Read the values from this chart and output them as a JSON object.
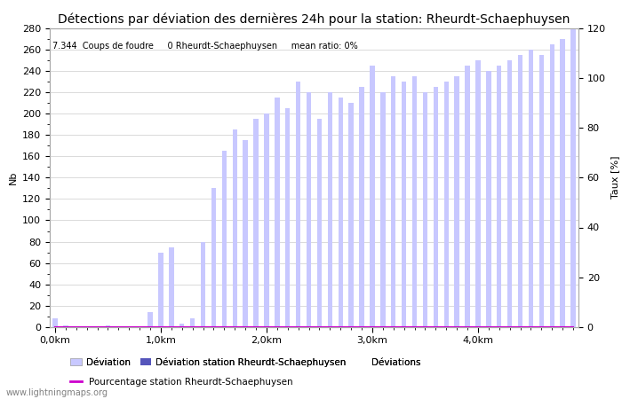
{
  "title": "Détections par déviation des dernières 24h pour la station: Rheurdt-Schaephuysen",
  "subtitle": "7.344  Coups de foudre     0 Rheurdt-Schaephuysen     mean ratio: 0%",
  "xlabel": "Déviations",
  "ylabel_left": "Nb",
  "ylabel_right": "Taux [%]",
  "ylim_left": [
    0,
    280
  ],
  "ylim_right": [
    0,
    120
  ],
  "xtick_labels": [
    "0,0km",
    "1,0km",
    "2,0km",
    "3,0km",
    "4,0km"
  ],
  "xtick_positions": [
    0,
    10,
    20,
    30,
    40
  ],
  "yticks_left": [
    0,
    20,
    40,
    60,
    80,
    100,
    120,
    140,
    160,
    180,
    200,
    220,
    240,
    260,
    280
  ],
  "yticks_right": [
    0,
    20,
    40,
    60,
    80,
    100,
    120
  ],
  "bar_values_all": [
    8,
    2,
    1,
    1,
    1,
    2,
    1,
    1,
    1,
    14,
    70,
    75,
    3,
    8,
    80,
    130,
    165,
    185,
    175,
    195,
    200,
    215,
    205,
    230,
    220,
    195,
    220,
    215,
    210,
    225,
    245,
    220,
    235,
    230,
    235,
    220,
    225,
    230,
    235,
    245,
    250,
    240,
    245,
    250,
    255,
    260,
    255,
    265,
    270,
    280
  ],
  "bar_values_station": [
    0,
    0,
    0,
    0,
    0,
    0,
    0,
    0,
    0,
    0,
    0,
    0,
    0,
    0,
    0,
    0,
    0,
    0,
    0,
    0,
    0,
    0,
    0,
    0,
    0,
    0,
    0,
    0,
    0,
    0,
    0,
    0,
    0,
    0,
    0,
    0,
    0,
    0,
    0,
    0,
    0,
    0,
    0,
    0,
    0,
    0,
    0,
    0,
    0,
    0
  ],
  "percentage_values": [
    0,
    0,
    0,
    0,
    0,
    0,
    0,
    0,
    0,
    0,
    0,
    0,
    0,
    0,
    0,
    0,
    0,
    0,
    0,
    0,
    0,
    0,
    0,
    0,
    0,
    0,
    0,
    0,
    0,
    0,
    0,
    0,
    0,
    0,
    0,
    0,
    0,
    0,
    0,
    0,
    0,
    0,
    0,
    0,
    0,
    0,
    0,
    0,
    0,
    0
  ],
  "color_all": "#c8c8ff",
  "color_station": "#5555bb",
  "color_percentage": "#cc00cc",
  "color_grid": "#cccccc",
  "color_background": "#ffffff",
  "watermark": "www.lightningmaps.org",
  "legend_entries": [
    "Déviation",
    "Déviation station Rheurdt-Schaephuysen",
    "Déviations",
    "Pourcentage station Rheurdt-Schaephuysen"
  ],
  "title_fontsize": 10,
  "label_fontsize": 8,
  "tick_fontsize": 8,
  "bar_width": 0.45
}
